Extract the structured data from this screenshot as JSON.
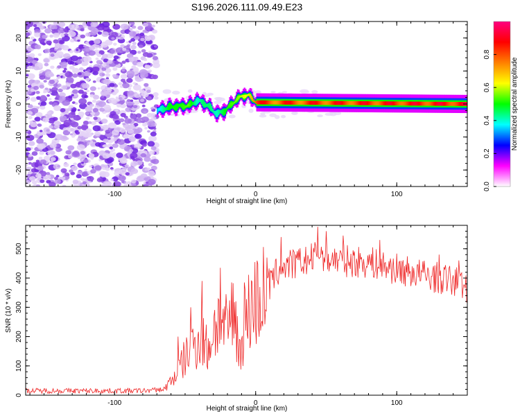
{
  "title": "S196.2026.111.09.49.E23",
  "chart_data": [
    {
      "type": "heatmap",
      "xlabel": "Height of straight line (km)",
      "ylabel": "Frequency (Hz)",
      "xlim": [
        -163,
        150
      ],
      "ylim": [
        -25,
        25
      ],
      "xticks": [
        -100,
        0,
        100
      ],
      "yticks": [
        -20,
        -10,
        0,
        10,
        20
      ],
      "noise_region_xmax": -70,
      "ridge": [
        {
          "x": -70,
          "f": -2.0,
          "amp": 0.35
        },
        {
          "x": -62,
          "f": -1.0,
          "amp": 0.5
        },
        {
          "x": -55,
          "f": -0.7,
          "amp": 0.5
        },
        {
          "x": -48,
          "f": -0.5,
          "amp": 0.55
        },
        {
          "x": -42,
          "f": 1.0,
          "amp": 0.4
        },
        {
          "x": -38,
          "f": 0.5,
          "amp": 0.45
        },
        {
          "x": -33,
          "f": -1.0,
          "amp": 0.45
        },
        {
          "x": -28,
          "f": -3.0,
          "amp": 0.4
        },
        {
          "x": -22,
          "f": -2.0,
          "amp": 0.5
        },
        {
          "x": -15,
          "f": 1.0,
          "amp": 0.55
        },
        {
          "x": -10,
          "f": 2.5,
          "amp": 0.6
        },
        {
          "x": -5,
          "f": 2.5,
          "amp": 0.65
        },
        {
          "x": 0,
          "f": 0.5,
          "amp": 0.8
        },
        {
          "x": 150,
          "f": 0.0,
          "amp": 0.85
        }
      ],
      "colorbar": {
        "label": "Normalized spectral amplitude",
        "range": [
          0,
          1
        ],
        "ticks": [
          0.0,
          0.2,
          0.4,
          0.6,
          0.8
        ],
        "tick_labels": [
          "0.0",
          "0.2",
          "0.4",
          "0.6",
          "0.8"
        ],
        "stops": [
          "#ffffff",
          "#ff00ff",
          "#0000ff",
          "#00ffff",
          "#00ff00",
          "#ffff00",
          "#ff8000",
          "#ff0000",
          "#ff0080"
        ]
      }
    },
    {
      "type": "line",
      "xlabel": "Height of straight line (km)",
      "ylabel": "SNR (10 * v/v)",
      "xlim": [
        -163,
        150
      ],
      "ylim": [
        0,
        580
      ],
      "xticks": [
        -100,
        0,
        100
      ],
      "yticks": [
        0,
        100,
        200,
        300,
        400,
        500
      ],
      "color": "#ee2222",
      "series": [
        {
          "name": "SNR",
          "x": [
            -163,
            -120,
            -80,
            -65,
            -58,
            -52,
            -47,
            -43,
            -38,
            -34,
            -30,
            -27,
            -22,
            -18,
            -14,
            -12,
            -8,
            -4,
            0,
            3,
            8,
            12,
            15,
            20,
            30,
            40,
            45,
            50,
            60,
            70,
            80,
            90,
            100,
            110,
            120,
            130,
            140,
            150
          ],
          "y": [
            15,
            15,
            15,
            20,
            60,
            110,
            150,
            180,
            200,
            150,
            220,
            260,
            210,
            260,
            290,
            130,
            240,
            300,
            320,
            330,
            360,
            390,
            420,
            440,
            450,
            465,
            490,
            470,
            460,
            455,
            455,
            440,
            430,
            420,
            410,
            400,
            390,
            370
          ]
        }
      ],
      "spikes": [
        {
          "x": -55,
          "y": 200
        },
        {
          "x": -46,
          "y": 300
        },
        {
          "x": -38,
          "y": 390
        },
        {
          "x": -25,
          "y": 435
        },
        {
          "x": -8,
          "y": 385
        },
        {
          "x": 8,
          "y": 470
        },
        {
          "x": 18,
          "y": 540
        },
        {
          "x": 44,
          "y": 575
        },
        {
          "x": 50,
          "y": 560
        },
        {
          "x": 62,
          "y": 545
        },
        {
          "x": 88,
          "y": 530
        },
        {
          "x": 130,
          "y": 480
        },
        {
          "x": 144,
          "y": 460
        }
      ]
    }
  ]
}
